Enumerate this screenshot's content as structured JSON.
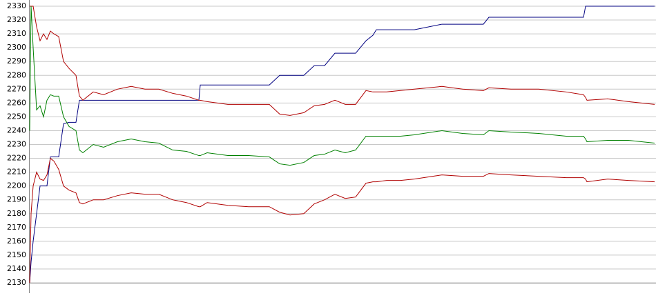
{
  "chart_data": {
    "type": "line",
    "x": [
      0,
      2,
      5,
      10,
      15,
      20,
      25,
      30,
      35,
      42,
      49,
      57,
      67,
      72,
      77,
      92,
      107,
      127,
      147,
      167,
      187,
      207,
      227,
      245,
      247,
      257,
      287,
      317,
      347,
      362,
      377,
      397,
      412,
      427,
      442,
      457,
      472,
      487,
      497,
      502,
      517,
      537,
      557,
      597,
      627,
      657,
      665,
      697,
      737,
      777,
      802,
      805,
      807,
      837,
      867,
      905
    ],
    "xlim": [
      0,
      905
    ],
    "ylim": [
      2130,
      2330
    ],
    "yticks": [
      2130,
      2140,
      2150,
      2160,
      2170,
      2180,
      2190,
      2200,
      2210,
      2220,
      2230,
      2240,
      2250,
      2260,
      2270,
      2280,
      2290,
      2300,
      2310,
      2320,
      2330
    ],
    "grid": true,
    "series": [
      {
        "color": "#000080",
        "values": [
          2130,
          2145,
          2160,
          2180,
          2200,
          2200,
          2200,
          2221,
          2221,
          2221,
          2245,
          2246,
          2246,
          2262,
          2262,
          2262,
          2262,
          2262,
          2262,
          2262,
          2262,
          2262,
          2262,
          2262,
          2273,
          2273,
          2273,
          2273,
          2273,
          2280,
          2280,
          2280,
          2287,
          2287,
          2296,
          2296,
          2296,
          2305,
          2309,
          2313,
          2313,
          2313,
          2313,
          2317,
          2317,
          2317,
          2322,
          2322,
          2322,
          2322,
          2322,
          2330,
          2330,
          2330,
          2330,
          2330
        ]
      },
      {
        "color": "#b00000",
        "values": [
          2330,
          2330,
          2330,
          2315,
          2305,
          2310,
          2306,
          2312,
          2310,
          2308,
          2290,
          2285,
          2280,
          2265,
          2262,
          2268,
          2266,
          2270,
          2272,
          2270,
          2270,
          2267,
          2265,
          2262,
          2262,
          2261,
          2259,
          2259,
          2259,
          2252,
          2251,
          2253,
          2258,
          2259,
          2262,
          2259,
          2259,
          2269,
          2268,
          2268,
          2268,
          2269,
          2270,
          2272,
          2270,
          2269,
          2271,
          2270,
          2270,
          2268,
          2266,
          2264,
          2262,
          2263,
          2261,
          2259
        ]
      },
      {
        "color": "#008000",
        "values": [
          2240,
          2330,
          2300,
          2255,
          2258,
          2250,
          2262,
          2266,
          2265,
          2265,
          2250,
          2243,
          2240,
          2226,
          2224,
          2230,
          2228,
          2232,
          2234,
          2232,
          2231,
          2226,
          2225,
          2222,
          2222,
          2224,
          2222,
          2222,
          2221,
          2216,
          2215,
          2217,
          2222,
          2223,
          2226,
          2224,
          2226,
          2236,
          2236,
          2236,
          2236,
          2236,
          2237,
          2240,
          2238,
          2237,
          2240,
          2239,
          2238,
          2236,
          2236,
          2234,
          2232,
          2233,
          2233,
          2231
        ]
      },
      {
        "color": "#b00000",
        "values": [
          2130,
          2180,
          2200,
          2210,
          2205,
          2204,
          2208,
          2220,
          2218,
          2212,
          2200,
          2197,
          2195,
          2188,
          2187,
          2190,
          2190,
          2193,
          2195,
          2194,
          2194,
          2190,
          2188,
          2185,
          2185,
          2188,
          2186,
          2185,
          2185,
          2181,
          2179,
          2180,
          2187,
          2190,
          2194,
          2191,
          2192,
          2202,
          2203,
          2203,
          2204,
          2204,
          2205,
          2208,
          2207,
          2207,
          2209,
          2208,
          2207,
          2206,
          2206,
          2205,
          2203,
          2205,
          2204,
          2203
        ]
      }
    ]
  }
}
